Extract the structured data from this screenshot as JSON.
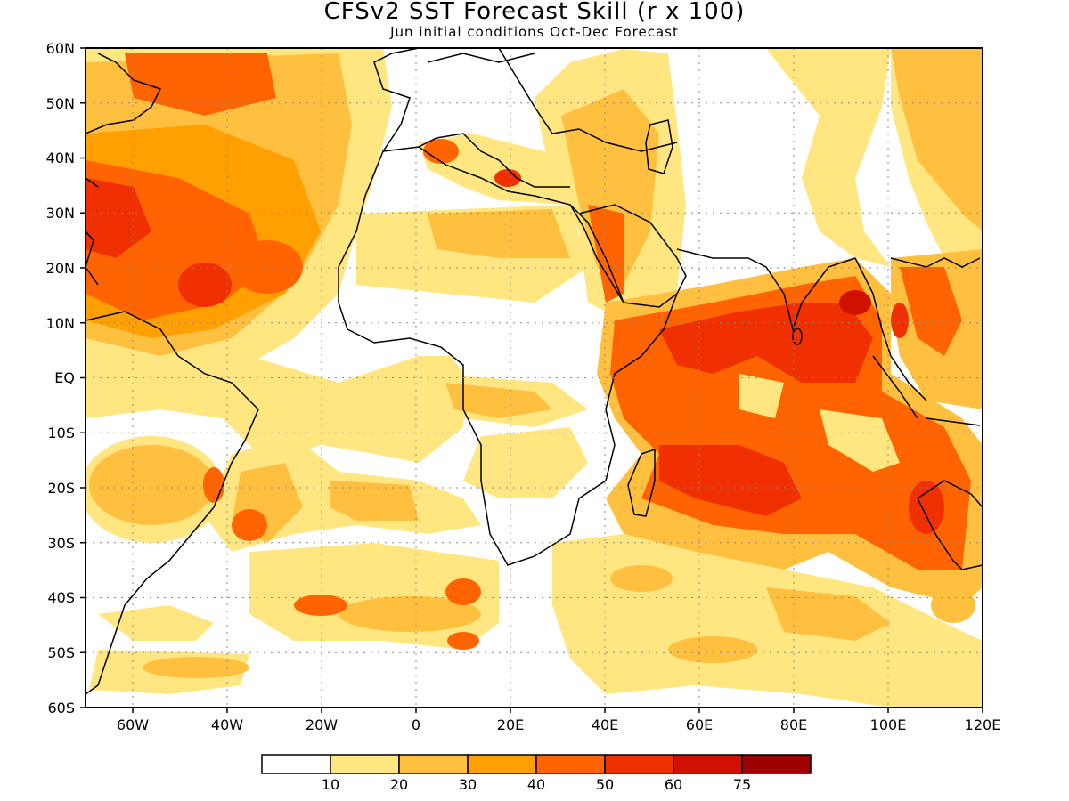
{
  "title": "CFSv2 SST Forecast Skill (r x 100)",
  "subtitle": "Jun initial conditions  Oct-Dec Forecast",
  "map": {
    "lon_range": [
      -70,
      120
    ],
    "lat_range": [
      -60,
      60
    ],
    "y_ticks": [
      "60N",
      "50N",
      "40N",
      "30N",
      "20N",
      "10N",
      "EQ",
      "10S",
      "20S",
      "30S",
      "40S",
      "50S",
      "60S"
    ],
    "x_ticks": [
      "60W",
      "40W",
      "20W",
      "0",
      "20E",
      "40E",
      "60E",
      "80E",
      "100E",
      "120E"
    ],
    "gridlines": "dotted"
  },
  "colorbar": {
    "labels": [
      "10",
      "20",
      "30",
      "40",
      "50",
      "60",
      "75"
    ],
    "colors": [
      "#ffffff",
      "#ffe680",
      "#ffc040",
      "#ffa000",
      "#ff6400",
      "#f03000",
      "#d01000",
      "#a00000"
    ]
  }
}
